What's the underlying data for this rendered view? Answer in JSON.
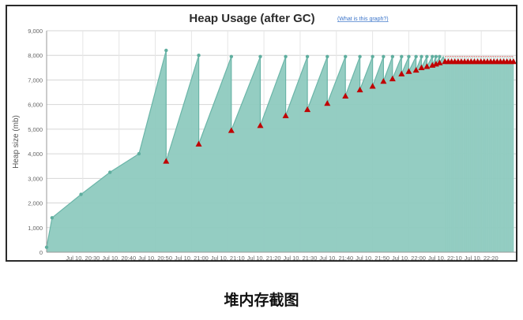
{
  "caption": "堆内存截图",
  "chart_data": {
    "type": "area",
    "title": "Heap Usage (after GC)",
    "help_link": "(What is this graph?)",
    "ylabel": "Heap size (mb)",
    "xlabel": "",
    "ylim": [
      0,
      9000
    ],
    "xlim": [
      0,
      130
    ],
    "y_ticks": [
      "0",
      "1,000",
      "2,000",
      "3,000",
      "4,000",
      "5,000",
      "6,000",
      "7,000",
      "8,000",
      "9,000"
    ],
    "y_tick_values": [
      0,
      1000,
      2000,
      3000,
      4000,
      5000,
      6000,
      7000,
      8000,
      9000
    ],
    "x_ticks": [
      "Jul 10, 20:30",
      "Jul 10, 20:40",
      "Jul 10, 20:50",
      "Jul 10, 21:00",
      "Jul 10, 21:10",
      "Jul 10, 21:20",
      "Jul 10, 21:30",
      "Jul 10, 21:40",
      "Jul 10, 21:50",
      "Jul 10, 22:00",
      "Jul 10, 22:10",
      "Jul 10, 22:20"
    ],
    "x_tick_values": [
      10,
      20,
      30,
      40,
      50,
      60,
      70,
      80,
      90,
      100,
      110,
      120
    ],
    "grid": true,
    "fill_color": "#8ecabf",
    "line_color": "#6bb5a8",
    "gc_marker_color": "#c00000",
    "heap": [
      [
        0,
        200
      ],
      [
        1.5,
        1400
      ],
      [
        9.5,
        2350
      ],
      [
        17.5,
        3250
      ],
      [
        25.5,
        4000
      ],
      [
        33,
        8200
      ],
      [
        33,
        3700
      ],
      [
        42,
        8000
      ],
      [
        42,
        4400
      ],
      [
        51,
        7950
      ],
      [
        51,
        4950
      ],
      [
        59,
        7950
      ],
      [
        59,
        5150
      ],
      [
        66,
        7950
      ],
      [
        66,
        5550
      ],
      [
        72,
        7950
      ],
      [
        72,
        5800
      ],
      [
        77.5,
        7950
      ],
      [
        77.5,
        6050
      ],
      [
        82.5,
        7950
      ],
      [
        82.5,
        6350
      ],
      [
        86.5,
        7950
      ],
      [
        86.5,
        6600
      ],
      [
        90,
        7950
      ],
      [
        90,
        6750
      ],
      [
        93,
        7950
      ],
      [
        93,
        6950
      ],
      [
        95.5,
        7950
      ],
      [
        95.5,
        7050
      ],
      [
        98,
        7950
      ],
      [
        98,
        7250
      ],
      [
        100,
        7950
      ],
      [
        100,
        7350
      ],
      [
        102,
        7950
      ],
      [
        102,
        7400
      ],
      [
        103.5,
        7950
      ],
      [
        103.5,
        7500
      ],
      [
        105,
        7950
      ],
      [
        105,
        7550
      ],
      [
        106.5,
        7950
      ],
      [
        106.5,
        7600
      ],
      [
        107.5,
        7950
      ],
      [
        107.5,
        7650
      ],
      [
        108.5,
        7950
      ],
      [
        108.5,
        7700
      ],
      [
        109.5,
        7950
      ],
      [
        110,
        7750
      ],
      [
        129,
        7750
      ]
    ],
    "gc_points": [
      [
        33,
        3700
      ],
      [
        42,
        4400
      ],
      [
        51,
        4950
      ],
      [
        59,
        5150
      ],
      [
        66,
        5550
      ],
      [
        72,
        5800
      ],
      [
        77.5,
        6050
      ],
      [
        82.5,
        6350
      ],
      [
        86.5,
        6600
      ],
      [
        90,
        6750
      ],
      [
        93,
        6950
      ],
      [
        95.5,
        7050
      ],
      [
        98,
        7250
      ],
      [
        100,
        7350
      ],
      [
        102,
        7400
      ],
      [
        103.5,
        7500
      ],
      [
        105,
        7550
      ],
      [
        106.5,
        7600
      ],
      [
        107.5,
        7650
      ],
      [
        108.5,
        7700
      ]
    ],
    "gc_band": {
      "x_start": 110,
      "x_end": 129,
      "y": 7750,
      "upper": 7950
    }
  }
}
